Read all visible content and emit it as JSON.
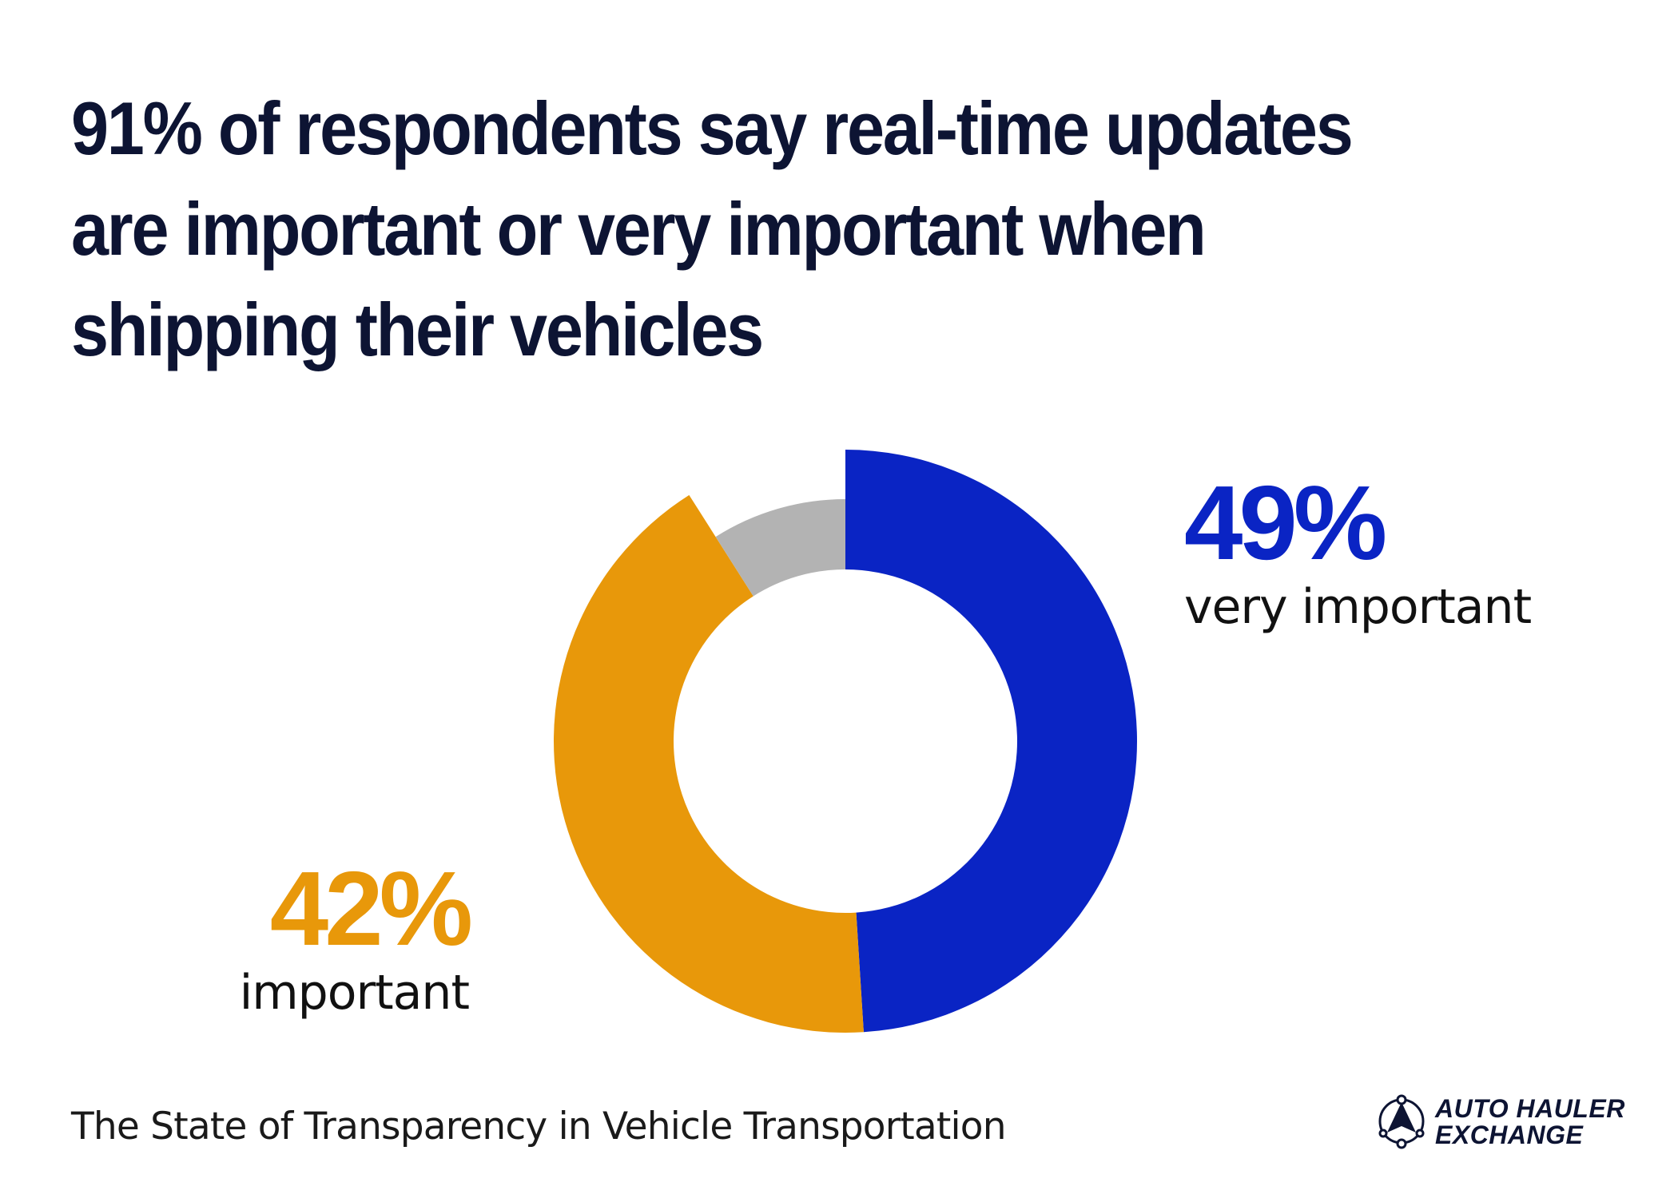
{
  "headline": "91% of respondents say real-time updates are important or very important when shipping their vehicles",
  "source": "The State of Transparency in Vehicle Transportation",
  "brand": {
    "line1": "AUTO HAULER",
    "line2": "EXCHANGE",
    "icon": "auto-hauler-logo-icon"
  },
  "colors": {
    "very_important": "#0a24c4",
    "important": "#e8980a",
    "other": "#b3b3b3",
    "text": "#0d1433"
  },
  "chart_data": {
    "type": "pie",
    "style": "donut",
    "start": "12 o'clock, clockwise",
    "series": [
      {
        "name": "very important",
        "value": 49,
        "label": "49%",
        "color": "#0a24c4"
      },
      {
        "name": "important",
        "value": 42,
        "label": "42%",
        "color": "#e8980a"
      },
      {
        "name": "",
        "value": 9,
        "label": "",
        "color": "#b3b3b3"
      }
    ],
    "unit": "%"
  }
}
